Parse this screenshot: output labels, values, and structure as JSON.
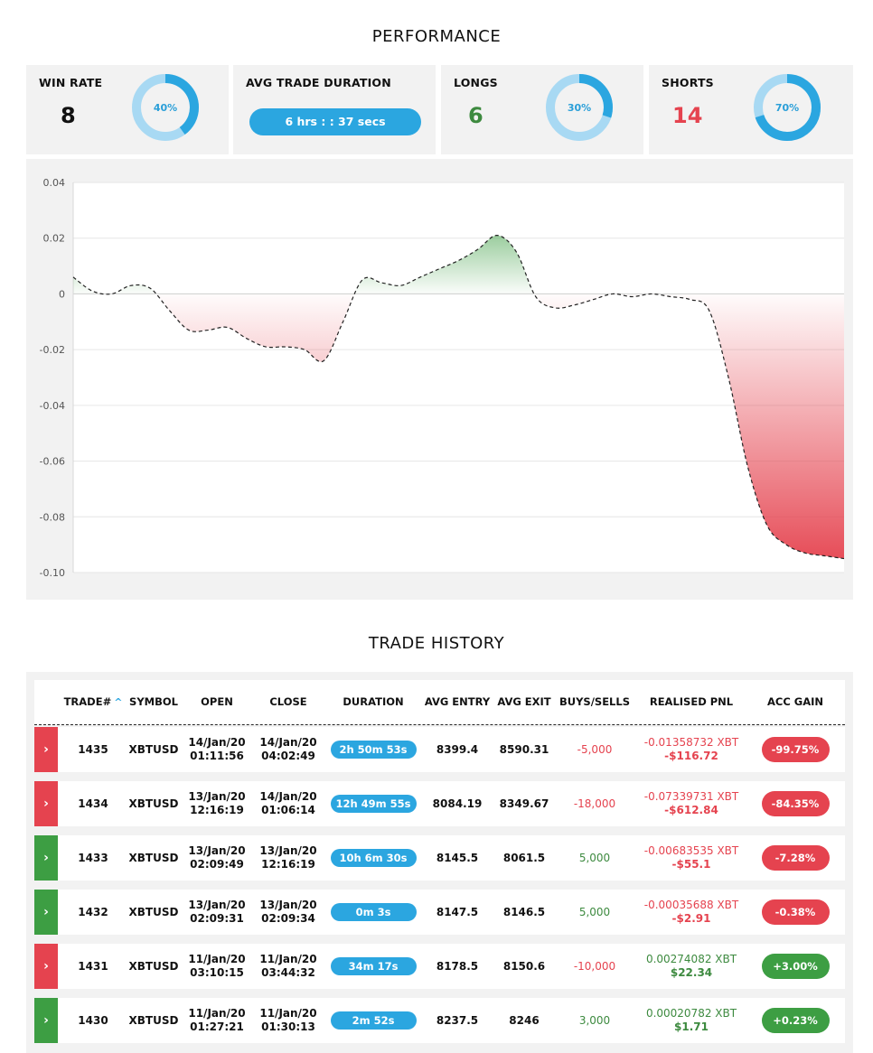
{
  "performance": {
    "title": "PERFORMANCE",
    "win_rate": {
      "label": "WIN RATE",
      "value": "8",
      "donut_text": "40%",
      "percent": 40
    },
    "avg_duration": {
      "label": "AVG TRADE DURATION",
      "value": "6 hrs : : 37 secs"
    },
    "longs": {
      "label": "LONGS",
      "value": "6",
      "donut_text": "30%",
      "percent": 30
    },
    "shorts": {
      "label": "SHORTS",
      "value": "14",
      "donut_text": "70%",
      "percent": 70
    },
    "colors": {
      "accent": "#2ba6e0",
      "donut_track": "#a8d9f3",
      "loss": "#e5434f",
      "gain": "#3d9e43"
    }
  },
  "chart_data": {
    "type": "area",
    "title": "",
    "xlabel": "",
    "ylabel": "",
    "ylim": [
      -0.1,
      0.04
    ],
    "yticks": [
      "0.04",
      "0.02",
      "0",
      "-0.02",
      "-0.04",
      "-0.06",
      "-0.08",
      "-0.10"
    ],
    "ytick_values": [
      0.04,
      0.02,
      0,
      -0.02,
      -0.04,
      -0.06,
      -0.08,
      -0.1
    ],
    "grid": true,
    "line_style": "dashed",
    "fill": "green above zero, red below zero",
    "x": [
      0,
      1,
      2,
      3,
      4,
      5,
      6,
      7,
      8,
      9,
      10,
      11,
      12,
      13,
      14,
      15,
      16,
      17,
      18,
      19,
      20,
      21,
      22,
      23,
      24,
      25,
      26,
      27,
      28,
      29,
      30,
      31,
      32,
      33,
      34,
      35,
      36,
      37,
      38,
      39,
      40
    ],
    "y": [
      0.006,
      0.001,
      0.0,
      0.003,
      0.002,
      -0.006,
      -0.013,
      -0.013,
      -0.012,
      -0.016,
      -0.019,
      -0.019,
      -0.02,
      -0.024,
      -0.01,
      0.005,
      0.004,
      0.003,
      0.006,
      0.009,
      0.012,
      0.016,
      0.021,
      0.015,
      -0.001,
      -0.005,
      -0.004,
      -0.002,
      0.0,
      -0.001,
      0.0,
      -0.001,
      -0.002,
      -0.006,
      -0.03,
      -0.062,
      -0.083,
      -0.09,
      -0.093,
      -0.094,
      -0.095
    ]
  },
  "trade_history": {
    "title": "TRADE HISTORY",
    "columns": [
      "TRADE#",
      "SYMBOL",
      "OPEN",
      "CLOSE",
      "DURATION",
      "AVG ENTRY",
      "AVG EXIT",
      "BUYS/SELLS",
      "REALISED PNL",
      "ACC GAIN"
    ],
    "rows": [
      {
        "result": "loss",
        "trade": "1435",
        "symbol": "XBTUSD",
        "open_date": "14/Jan/20",
        "open_time": "01:11:56",
        "close_date": "14/Jan/20",
        "close_time": "04:02:49",
        "duration": "2h 50m 53s",
        "avg_entry": "8399.4",
        "avg_exit": "8590.31",
        "buys_sells": "-5,000",
        "pnl_xbt": "-0.01358732 XBT",
        "pnl_usd": "-$116.72",
        "acc_gain": "-99.75%"
      },
      {
        "result": "loss",
        "trade": "1434",
        "symbol": "XBTUSD",
        "open_date": "13/Jan/20",
        "open_time": "12:16:19",
        "close_date": "14/Jan/20",
        "close_time": "01:06:14",
        "duration": "12h 49m 55s",
        "avg_entry": "8084.19",
        "avg_exit": "8349.67",
        "buys_sells": "-18,000",
        "pnl_xbt": "-0.07339731 XBT",
        "pnl_usd": "-$612.84",
        "acc_gain": "-84.35%"
      },
      {
        "result": "win",
        "trade": "1433",
        "symbol": "XBTUSD",
        "open_date": "13/Jan/20",
        "open_time": "02:09:49",
        "close_date": "13/Jan/20",
        "close_time": "12:16:19",
        "duration": "10h 6m 30s",
        "avg_entry": "8145.5",
        "avg_exit": "8061.5",
        "buys_sells": "5,000",
        "pnl_xbt": "-0.00683535 XBT",
        "pnl_usd": "-$55.1",
        "acc_gain": "-7.28%"
      },
      {
        "result": "win",
        "trade": "1432",
        "symbol": "XBTUSD",
        "open_date": "13/Jan/20",
        "open_time": "02:09:31",
        "close_date": "13/Jan/20",
        "close_time": "02:09:34",
        "duration": "0m 3s",
        "avg_entry": "8147.5",
        "avg_exit": "8146.5",
        "buys_sells": "5,000",
        "pnl_xbt": "-0.00035688 XBT",
        "pnl_usd": "-$2.91",
        "acc_gain": "-0.38%"
      },
      {
        "result": "loss",
        "trade": "1431",
        "symbol": "XBTUSD",
        "open_date": "11/Jan/20",
        "open_time": "03:10:15",
        "close_date": "11/Jan/20",
        "close_time": "03:44:32",
        "duration": "34m 17s",
        "avg_entry": "8178.5",
        "avg_exit": "8150.6",
        "buys_sells": "-10,000",
        "pnl_xbt": "0.00274082 XBT",
        "pnl_usd": "$22.34",
        "acc_gain": "+3.00%"
      },
      {
        "result": "win",
        "trade": "1430",
        "symbol": "XBTUSD",
        "open_date": "11/Jan/20",
        "open_time": "01:27:21",
        "close_date": "11/Jan/20",
        "close_time": "01:30:13",
        "duration": "2m 52s",
        "avg_entry": "8237.5",
        "avg_exit": "8246",
        "buys_sells": "3,000",
        "pnl_xbt": "0.00020782 XBT",
        "pnl_usd": "$1.71",
        "acc_gain": "+0.23%"
      }
    ]
  }
}
